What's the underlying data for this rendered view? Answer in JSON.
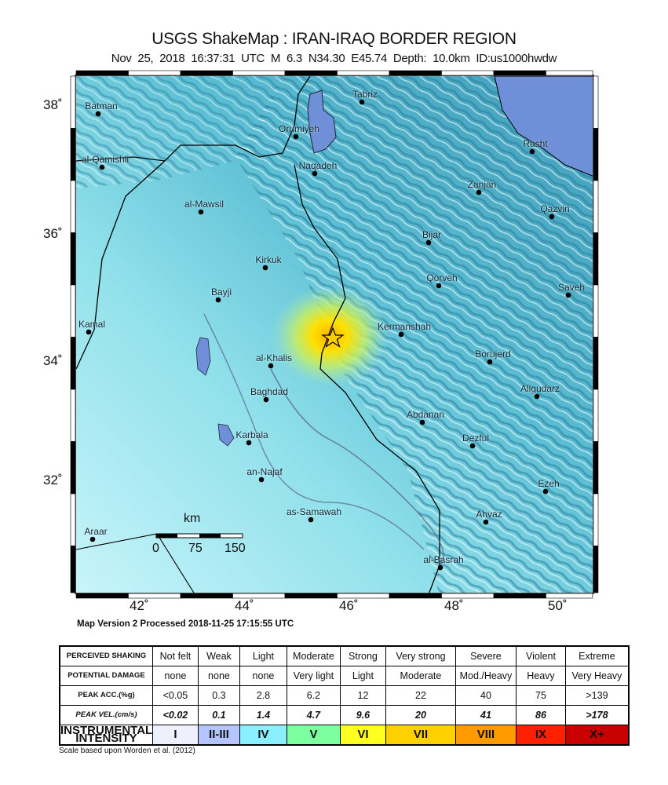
{
  "header": {
    "title": "USGS ShakeMap : IRAN-IRAQ BORDER REGION",
    "subtitle": "Nov 25, 2018 16:37:31 UTC   M 6.3   N34.30 E45.74   Depth: 10.0km   ID:us1000hwdw"
  },
  "map": {
    "lon_ticks": [
      "42˚",
      "44˚",
      "46˚",
      "48˚",
      "50˚"
    ],
    "lat_ticks": [
      "38˚",
      "36˚",
      "34˚",
      "32˚"
    ],
    "epicenter_icon": "star-icon",
    "colors": {
      "land_low": "#9fe6f0",
      "land_high": "#2f8fa8",
      "water": "#6f8fd8",
      "epicenter_shaking": "#ffd000"
    },
    "cities": [
      "Batman",
      "al-Qamishli",
      "Tabriz",
      "Orumiyeh",
      "Naqadeh",
      "Rasht",
      "Zanjan",
      "Qazvin",
      "al-Mawsil",
      "Bijar",
      "Kirkuk",
      "Qorveh",
      "Saveh",
      "Bayji",
      "Kamal",
      "Kermanshah",
      "Borujerd",
      "al-Khalis",
      "Aligudarz",
      "Baghdad",
      "Abdanan",
      "Dezful",
      "Karbala",
      "an-Najaf",
      "Ezeh",
      "Ahvaz",
      "as-Samawah",
      "Araar",
      "al-Basrah"
    ],
    "scale_bar": {
      "unit": "km",
      "labels": [
        "0",
        "75",
        "150"
      ]
    }
  },
  "version_text": "Map Version 2 Processed 2018-11-25 17:15:55 UTC",
  "legend": {
    "rows": [
      {
        "header": "PERCEIVED SHAKING",
        "cells": [
          "Not felt",
          "Weak",
          "Light",
          "Moderate",
          "Strong",
          "Very strong",
          "Severe",
          "Violent",
          "Extreme"
        ]
      },
      {
        "header": "POTENTIAL DAMAGE",
        "cells": [
          "none",
          "none",
          "none",
          "Very light",
          "Light",
          "Moderate",
          "Mod./Heavy",
          "Heavy",
          "Very Heavy"
        ]
      },
      {
        "header": "PEAK ACC.(%g)",
        "cells": [
          "<0.05",
          "0.3",
          "2.8",
          "6.2",
          "12",
          "22",
          "40",
          "75",
          ">139"
        ]
      },
      {
        "header": "PEAK VEL.(cm/s)",
        "cells": [
          "<0.02",
          "0.1",
          "1.4",
          "4.7",
          "9.6",
          "20",
          "41",
          "86",
          ">178"
        ]
      },
      {
        "header": "INSTRUMENTAL INTENSITY",
        "cells": [
          "I",
          "II-III",
          "IV",
          "V",
          "VI",
          "VII",
          "VIII",
          "IX",
          "X+"
        ]
      }
    ],
    "intensity_colors": [
      "#eef0fb",
      "#b4c4ff",
      "#8af0ff",
      "#7dffa0",
      "#ffff20",
      "#ffd000",
      "#ff9a00",
      "#ff2000",
      "#c80000"
    ],
    "note": "Scale based upon Worden et al. (2012)"
  }
}
